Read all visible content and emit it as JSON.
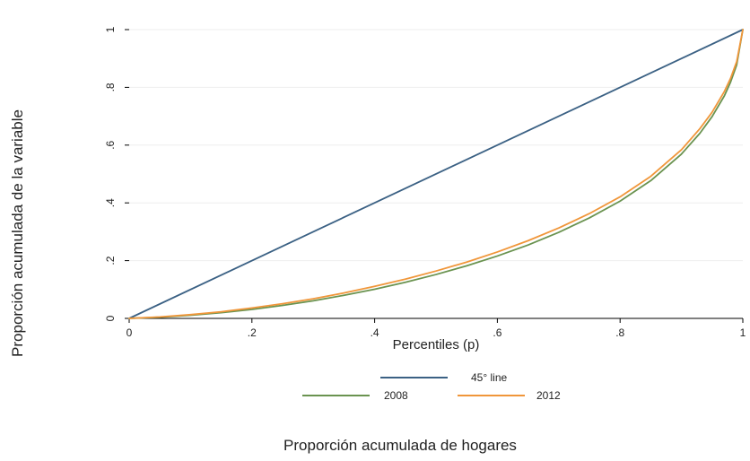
{
  "chart_data": {
    "type": "line",
    "title": "",
    "xlabel": "Percentiles (p)",
    "ylabel": "Proporción acumulada de la variable",
    "caption": "Proporción acumulada de hogares",
    "xlim": [
      0,
      1
    ],
    "ylim": [
      0,
      1
    ],
    "x_ticks": [
      {
        "value": 0,
        "label": "0"
      },
      {
        "value": 0.2,
        "label": ".2"
      },
      {
        "value": 0.4,
        "label": ".4"
      },
      {
        "value": 0.6,
        "label": ".6"
      },
      {
        "value": 0.8,
        "label": ".8"
      },
      {
        "value": 1,
        "label": "1"
      }
    ],
    "y_ticks": [
      {
        "value": 0,
        "label": "0"
      },
      {
        "value": 0.2,
        "label": ".2"
      },
      {
        "value": 0.4,
        "label": ".4"
      },
      {
        "value": 0.6,
        "label": ".6"
      },
      {
        "value": 0.8,
        "label": ".8"
      },
      {
        "value": 1,
        "label": "1"
      }
    ],
    "grid": true,
    "legend_position": "bottom",
    "series": [
      {
        "name": "45° line",
        "color": "#3b6184",
        "x": [
          0,
          1
        ],
        "y": [
          0,
          1
        ]
      },
      {
        "name": "2008",
        "color": "#6a9350",
        "x": [
          0,
          0.05,
          0.1,
          0.15,
          0.2,
          0.25,
          0.3,
          0.35,
          0.4,
          0.45,
          0.5,
          0.55,
          0.6,
          0.65,
          0.7,
          0.75,
          0.8,
          0.85,
          0.9,
          0.93,
          0.95,
          0.97,
          0.98,
          0.99,
          1
        ],
        "y": [
          0,
          0.004,
          0.011,
          0.02,
          0.031,
          0.045,
          0.061,
          0.08,
          0.101,
          0.125,
          0.152,
          0.182,
          0.216,
          0.254,
          0.298,
          0.348,
          0.406,
          0.477,
          0.569,
          0.641,
          0.699,
          0.771,
          0.818,
          0.878,
          1
        ]
      },
      {
        "name": "2012",
        "color": "#f0963a",
        "x": [
          0,
          0.05,
          0.1,
          0.15,
          0.2,
          0.25,
          0.3,
          0.35,
          0.4,
          0.45,
          0.5,
          0.55,
          0.6,
          0.65,
          0.7,
          0.75,
          0.8,
          0.85,
          0.9,
          0.93,
          0.95,
          0.97,
          0.98,
          0.99,
          1
        ],
        "y": [
          0,
          0.005,
          0.013,
          0.023,
          0.036,
          0.051,
          0.068,
          0.088,
          0.111,
          0.136,
          0.164,
          0.195,
          0.23,
          0.269,
          0.313,
          0.363,
          0.421,
          0.492,
          0.584,
          0.657,
          0.714,
          0.786,
          0.831,
          0.889,
          1
        ]
      }
    ]
  }
}
